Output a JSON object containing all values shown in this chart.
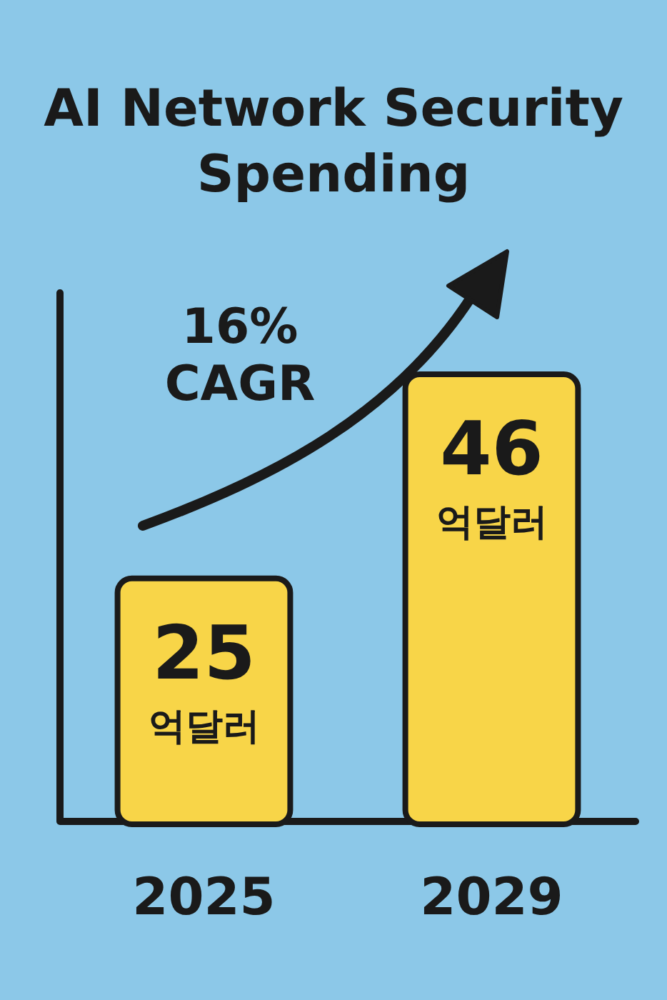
{
  "chart_data": {
    "type": "bar",
    "title": "AI Network Security Spending",
    "categories": [
      "2025",
      "2029"
    ],
    "values": [
      25,
      46
    ],
    "value_labels": [
      "25 억달러",
      "46 억달러"
    ],
    "color": "#f8d548",
    "annotations": [
      "16% CAGR"
    ]
  }
}
